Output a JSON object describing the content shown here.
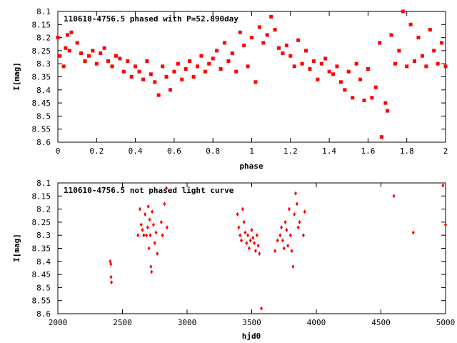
{
  "chart_data": [
    {
      "type": "scatter",
      "title": "110610-4756.5 phased with P=52.890day",
      "xlabel": "phase",
      "ylabel": "I[mag]",
      "xlim": [
        0,
        2
      ],
      "ylim": [
        8.6,
        8.1
      ],
      "y_inverted": true,
      "marker_color": "#ff0000",
      "x_ticks": [
        "0",
        "0.2",
        "0.4",
        "0.6",
        "0.8",
        "1",
        "1.2",
        "1.4",
        "1.6",
        "1.8",
        "2"
      ],
      "y_ticks": [
        "8.1",
        "8.15",
        "8.2",
        "8.25",
        "8.3",
        "8.35",
        "8.4",
        "8.45",
        "8.5",
        "8.55",
        "8.6"
      ],
      "points": [
        [
          0.0,
          8.2
        ],
        [
          0.01,
          8.27
        ],
        [
          0.03,
          8.31
        ],
        [
          0.04,
          8.24
        ],
        [
          0.05,
          8.19
        ],
        [
          0.06,
          8.25
        ],
        [
          0.07,
          8.18
        ],
        [
          0.1,
          8.22
        ],
        [
          0.12,
          8.26
        ],
        [
          0.14,
          8.29
        ],
        [
          0.16,
          8.27
        ],
        [
          0.18,
          8.25
        ],
        [
          0.2,
          8.3
        ],
        [
          0.22,
          8.26
        ],
        [
          0.24,
          8.24
        ],
        [
          0.26,
          8.29
        ],
        [
          0.28,
          8.31
        ],
        [
          0.3,
          8.27
        ],
        [
          0.32,
          8.28
        ],
        [
          0.34,
          8.33
        ],
        [
          0.36,
          8.29
        ],
        [
          0.38,
          8.35
        ],
        [
          0.4,
          8.31
        ],
        [
          0.42,
          8.33
        ],
        [
          0.44,
          8.36
        ],
        [
          0.46,
          8.29
        ],
        [
          0.48,
          8.34
        ],
        [
          0.5,
          8.37
        ],
        [
          0.52,
          8.42
        ],
        [
          0.54,
          8.31
        ],
        [
          0.56,
          8.35
        ],
        [
          0.58,
          8.4
        ],
        [
          0.6,
          8.33
        ],
        [
          0.62,
          8.3
        ],
        [
          0.64,
          8.36
        ],
        [
          0.66,
          8.32
        ],
        [
          0.68,
          8.29
        ],
        [
          0.7,
          8.35
        ],
        [
          0.72,
          8.31
        ],
        [
          0.74,
          8.27
        ],
        [
          0.76,
          8.33
        ],
        [
          0.78,
          8.3
        ],
        [
          0.8,
          8.28
        ],
        [
          0.82,
          8.25
        ],
        [
          0.84,
          8.32
        ],
        [
          0.86,
          8.22
        ],
        [
          0.88,
          8.29
        ],
        [
          0.9,
          8.26
        ],
        [
          0.92,
          8.33
        ],
        [
          0.94,
          8.18
        ],
        [
          0.96,
          8.23
        ],
        [
          0.98,
          8.31
        ],
        [
          1.0,
          8.2
        ],
        [
          1.02,
          8.37
        ],
        [
          1.04,
          8.16
        ],
        [
          1.06,
          8.22
        ],
        [
          1.08,
          8.19
        ],
        [
          1.1,
          8.12
        ],
        [
          1.12,
          8.17
        ],
        [
          1.14,
          8.24
        ],
        [
          1.16,
          8.26
        ],
        [
          1.18,
          8.23
        ],
        [
          1.2,
          8.27
        ],
        [
          1.22,
          8.31
        ],
        [
          1.24,
          8.21
        ],
        [
          1.26,
          8.3
        ],
        [
          1.28,
          8.25
        ],
        [
          1.3,
          8.32
        ],
        [
          1.32,
          8.29
        ],
        [
          1.34,
          8.36
        ],
        [
          1.36,
          8.3
        ],
        [
          1.38,
          8.28
        ],
        [
          1.4,
          8.33
        ],
        [
          1.42,
          8.34
        ],
        [
          1.44,
          8.31
        ],
        [
          1.46,
          8.37
        ],
        [
          1.48,
          8.4
        ],
        [
          1.5,
          8.33
        ],
        [
          1.52,
          8.43
        ],
        [
          1.54,
          8.3
        ],
        [
          1.56,
          8.36
        ],
        [
          1.58,
          8.44
        ],
        [
          1.6,
          8.32
        ],
        [
          1.62,
          8.43
        ],
        [
          1.64,
          8.39
        ],
        [
          1.66,
          8.22
        ],
        [
          1.67,
          8.58
        ],
        [
          1.69,
          8.45
        ],
        [
          1.7,
          8.48
        ],
        [
          1.72,
          8.19
        ],
        [
          1.74,
          8.3
        ],
        [
          1.76,
          8.25
        ],
        [
          1.78,
          8.1
        ],
        [
          1.8,
          8.31
        ],
        [
          1.82,
          8.15
        ],
        [
          1.84,
          8.29
        ],
        [
          1.86,
          8.2
        ],
        [
          1.88,
          8.27
        ],
        [
          1.9,
          8.31
        ],
        [
          1.92,
          8.17
        ],
        [
          1.94,
          8.25
        ],
        [
          1.96,
          8.3
        ],
        [
          1.98,
          8.22
        ],
        [
          2.0,
          8.31
        ]
      ]
    },
    {
      "type": "scatter",
      "title": "110610-4756.5 not phased light curve",
      "xlabel": "hjd0",
      "ylabel": "I[mag]",
      "xlim": [
        2000,
        5000
      ],
      "ylim": [
        8.6,
        8.1
      ],
      "y_inverted": true,
      "marker_color": "#ff0000",
      "x_ticks": [
        "2000",
        "2500",
        "3000",
        "3500",
        "4000",
        "4500",
        "5000"
      ],
      "y_ticks": [
        "8.1",
        "8.15",
        "8.2",
        "8.25",
        "8.3",
        "8.35",
        "8.4",
        "8.45",
        "8.5",
        "8.55",
        "8.6"
      ],
      "points": [
        [
          2405,
          8.4
        ],
        [
          2410,
          8.41
        ],
        [
          2412,
          8.46
        ],
        [
          2415,
          8.48
        ],
        [
          2620,
          8.3
        ],
        [
          2635,
          8.2
        ],
        [
          2645,
          8.26
        ],
        [
          2655,
          8.28
        ],
        [
          2665,
          8.3
        ],
        [
          2675,
          8.22
        ],
        [
          2685,
          8.3
        ],
        [
          2695,
          8.27
        ],
        [
          2700,
          8.19
        ],
        [
          2705,
          8.35
        ],
        [
          2710,
          8.24
        ],
        [
          2715,
          8.3
        ],
        [
          2720,
          8.42
        ],
        [
          2725,
          8.44
        ],
        [
          2730,
          8.21
        ],
        [
          2740,
          8.26
        ],
        [
          2750,
          8.33
        ],
        [
          2760,
          8.29
        ],
        [
          2770,
          8.37
        ],
        [
          2800,
          8.25
        ],
        [
          2810,
          8.3
        ],
        [
          2825,
          8.18
        ],
        [
          2840,
          8.12
        ],
        [
          2845,
          8.27
        ],
        [
          3390,
          8.22
        ],
        [
          3400,
          8.27
        ],
        [
          3410,
          8.3
        ],
        [
          3420,
          8.32
        ],
        [
          3430,
          8.2
        ],
        [
          3440,
          8.25
        ],
        [
          3450,
          8.29
        ],
        [
          3460,
          8.33
        ],
        [
          3470,
          8.3
        ],
        [
          3480,
          8.35
        ],
        [
          3490,
          8.32
        ],
        [
          3500,
          8.28
        ],
        [
          3510,
          8.31
        ],
        [
          3520,
          8.33
        ],
        [
          3530,
          8.36
        ],
        [
          3540,
          8.3
        ],
        [
          3550,
          8.34
        ],
        [
          3560,
          8.37
        ],
        [
          3575,
          8.58
        ],
        [
          3680,
          8.36
        ],
        [
          3700,
          8.32
        ],
        [
          3720,
          8.3
        ],
        [
          3730,
          8.27
        ],
        [
          3740,
          8.32
        ],
        [
          3750,
          8.35
        ],
        [
          3760,
          8.25
        ],
        [
          3770,
          8.28
        ],
        [
          3780,
          8.34
        ],
        [
          3790,
          8.2
        ],
        [
          3800,
          8.3
        ],
        [
          3810,
          8.36
        ],
        [
          3820,
          8.42
        ],
        [
          3830,
          8.22
        ],
        [
          3840,
          8.14
        ],
        [
          3850,
          8.18
        ],
        [
          3860,
          8.27
        ],
        [
          3870,
          8.25
        ],
        [
          3900,
          8.3
        ],
        [
          3910,
          8.21
        ],
        [
          4600,
          8.15
        ],
        [
          4750,
          8.29
        ],
        [
          4980,
          8.11
        ],
        [
          5000,
          8.26
        ]
      ]
    }
  ]
}
